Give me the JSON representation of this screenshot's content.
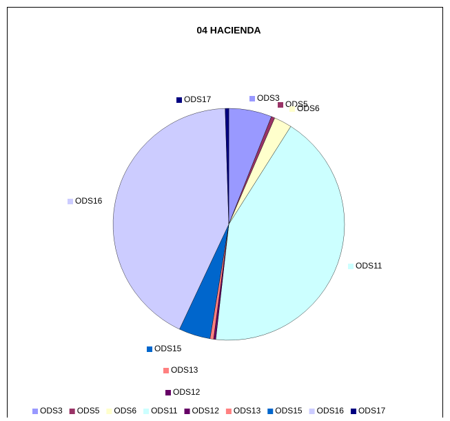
{
  "chart_data": {
    "type": "pie",
    "title": "04 HACIENDA",
    "categories": [
      "ODS3",
      "ODS5",
      "ODS6",
      "ODS11",
      "ODS12",
      "ODS13",
      "ODS15",
      "ODS16",
      "ODS17"
    ],
    "values": [
      6,
      0.5,
      2.5,
      42.8,
      0.3,
      0.5,
      4.4,
      42.5,
      0.5
    ],
    "colors": [
      "#9999ff",
      "#993366",
      "#ffffcc",
      "#ccffff",
      "#660066",
      "#ff8080",
      "#0066cc",
      "#ccccff",
      "#000080"
    ],
    "legend": "bottom"
  }
}
